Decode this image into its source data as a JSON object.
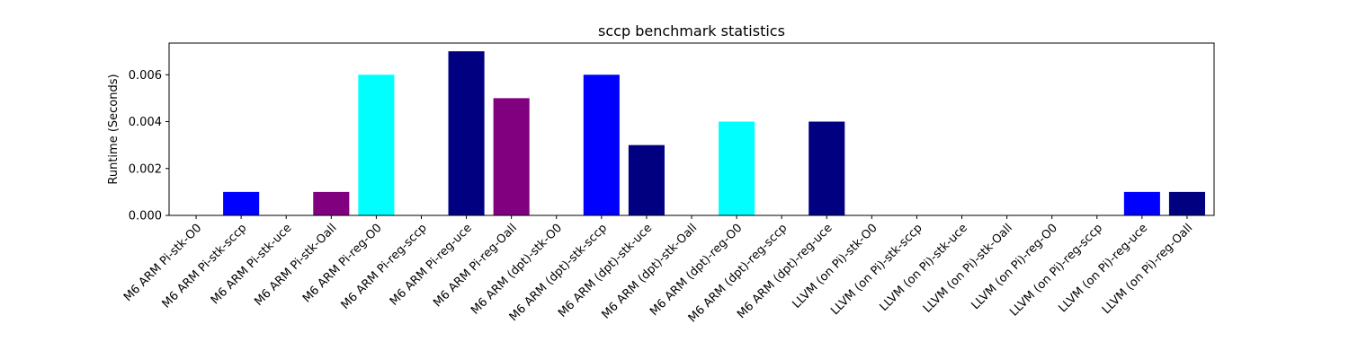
{
  "chart_data": {
    "type": "bar",
    "title": "sccp benchmark statistics",
    "xlabel": "",
    "ylabel": "Runtime (Seconds)",
    "ylim": [
      0,
      0.00735
    ],
    "yticks": [
      "0.000",
      "0.002",
      "0.004",
      "0.006"
    ],
    "ytick_values": [
      0,
      0.002,
      0.004,
      0.006
    ],
    "grid": false,
    "categories": [
      "M6 ARM Pi-stk-O0",
      "M6 ARM Pi-stk-sccp",
      "M6 ARM Pi-stk-uce",
      "M6 ARM Pi-stk-Oall",
      "M6 ARM Pi-reg-O0",
      "M6 ARM Pi-reg-sccp",
      "M6 ARM Pi-reg-uce",
      "M6 ARM Pi-reg-Oall",
      "M6 ARM (dpt)-stk-O0",
      "M6 ARM (dpt)-stk-sccp",
      "M6 ARM (dpt)-stk-uce",
      "M6 ARM (dpt)-stk-Oall",
      "M6 ARM (dpt)-reg-O0",
      "M6 ARM (dpt)-reg-sccp",
      "M6 ARM (dpt)-reg-uce",
      "LLVM (on Pi)-stk-O0",
      "LLVM (on Pi)-stk-sccp",
      "LLVM (on Pi)-stk-uce",
      "LLVM (on Pi)-stk-Oall",
      "LLVM (on Pi)-reg-O0",
      "LLVM (on Pi)-reg-sccp",
      "LLVM (on Pi)-reg-uce",
      "LLVM (on Pi)-reg-Oall"
    ],
    "values": [
      0,
      0.001,
      0,
      0.001,
      0.006,
      0,
      0.007,
      0.005,
      0,
      0.006,
      0.003,
      0,
      0.004,
      0,
      0.004,
      0,
      0,
      0,
      0,
      0,
      0,
      0.001,
      0.001
    ],
    "colors": [
      "#00ffff",
      "#0000ff",
      "#000080",
      "#800080",
      "#00ffff",
      "#0000ff",
      "#000080",
      "#800080",
      "#00ffff",
      "#0000ff",
      "#000080",
      "#800080",
      "#00ffff",
      "#0000ff",
      "#000080",
      "#00ffff",
      "#0000ff",
      "#000080",
      "#800080",
      "#00ffff",
      "#0000ff",
      "#0000ff",
      "#000080"
    ]
  }
}
